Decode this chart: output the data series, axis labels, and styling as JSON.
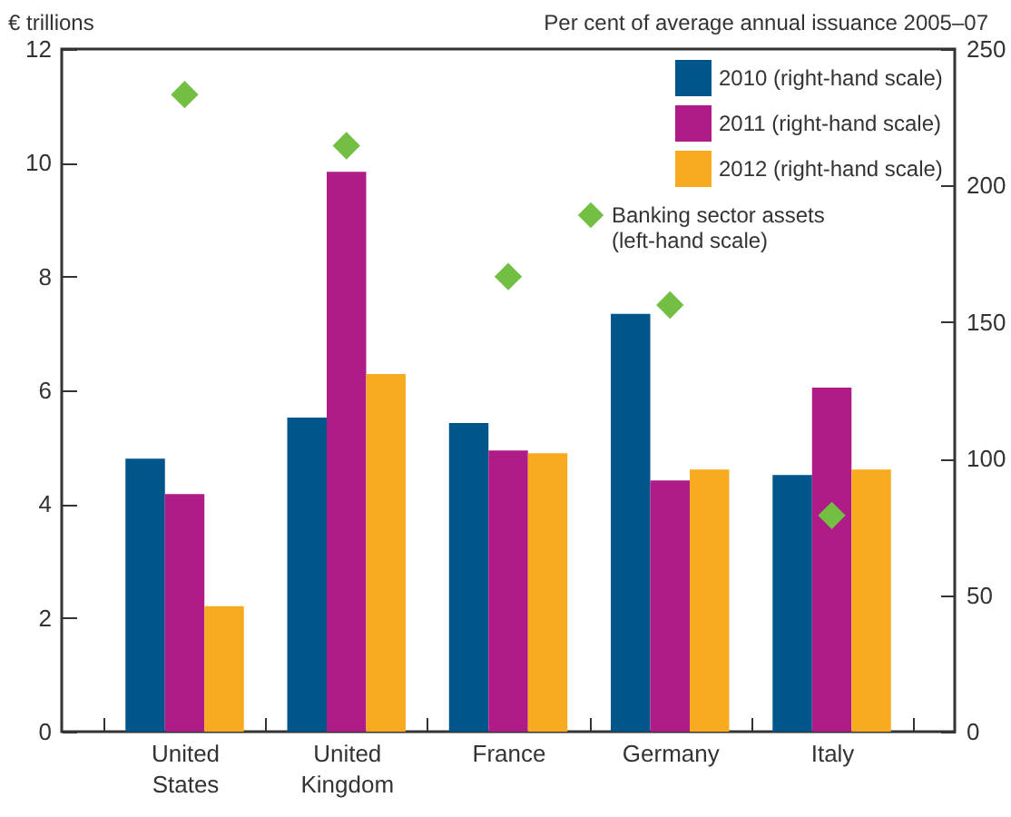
{
  "chart_data": {
    "type": "bar",
    "ylabel": "€ trillions",
    "y2label": "Per cent of average annual issuance 2005–07",
    "categories": [
      "United States",
      "United Kingdom",
      "France",
      "Germany",
      "Italy"
    ],
    "series": [
      {
        "name": "2010 (right-hand scale)",
        "color": "#00558b",
        "axis": "y2",
        "values": [
          100,
          115,
          113,
          153,
          94
        ]
      },
      {
        "name": "2011 (right-hand scale)",
        "color": "#b01c87",
        "axis": "y2",
        "values": [
          87,
          205,
          103,
          92,
          126
        ]
      },
      {
        "name": "2012 (right-hand scale)",
        "color": "#f8ab1e",
        "axis": "y2",
        "values": [
          46,
          131,
          102,
          96,
          96
        ]
      },
      {
        "name": "Banking sector assets\n(left-hand scale)",
        "type": "scatter",
        "marker": "diamond",
        "color": "#72bf44",
        "values": [
          11.2,
          10.3,
          8.0,
          7.5,
          3.8
        ]
      }
    ],
    "ylim": [
      0,
      12
    ],
    "yticks": [
      0,
      2,
      4,
      6,
      8,
      10,
      12
    ],
    "y2lim": [
      0,
      250
    ],
    "y2ticks": [
      0,
      50,
      100,
      150,
      200,
      250
    ],
    "grid": false,
    "legend": "top right"
  }
}
